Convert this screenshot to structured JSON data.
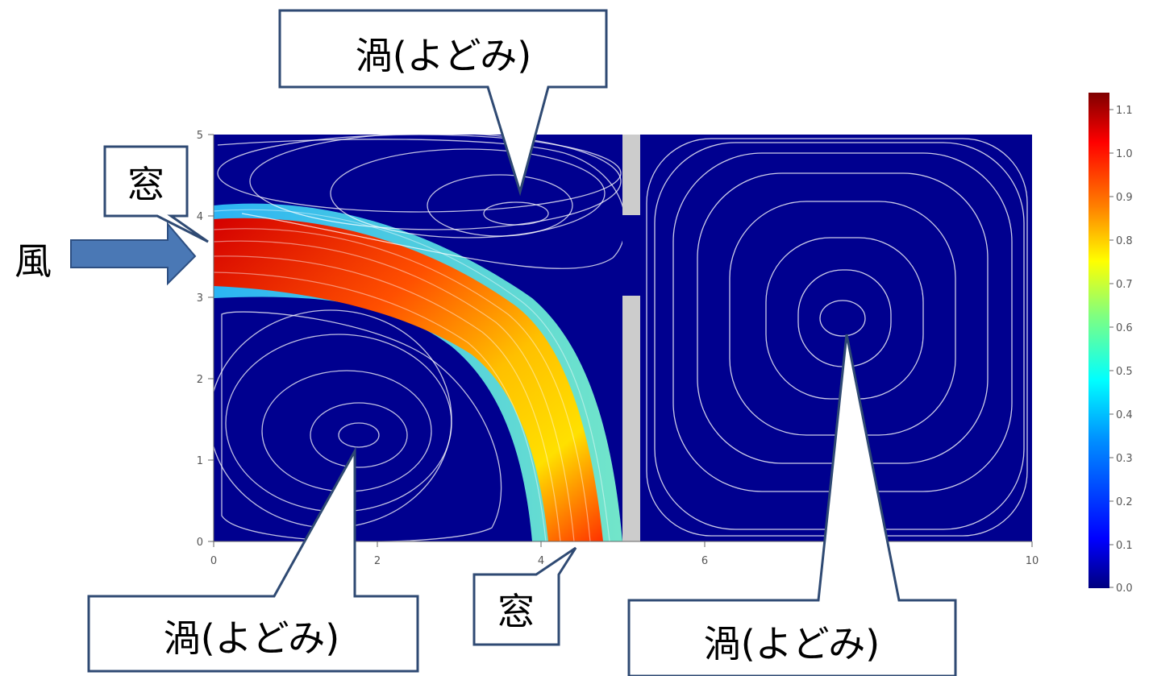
{
  "plot": {
    "x_ticks": [
      "0",
      "2",
      "4",
      "6",
      "10"
    ],
    "y_ticks": [
      "0",
      "1",
      "2",
      "3",
      "4",
      "5"
    ]
  },
  "colorbar": {
    "ticks": [
      "0.0",
      "0.1",
      "0.2",
      "0.3",
      "0.4",
      "0.5",
      "0.6",
      "0.7",
      "0.8",
      "0.9",
      "1.0",
      "1.1"
    ],
    "colors": [
      "#00007f",
      "#0000ff",
      "#0080ff",
      "#00ffff",
      "#80ff80",
      "#ffff00",
      "#ff8000",
      "#ff0000",
      "#7f0000"
    ]
  },
  "wind": {
    "label": "風",
    "color": "#4a78b5"
  },
  "callouts": {
    "vortex_top": "渦(よどみ)",
    "vortex_bottom_left": "渦(よどみ)",
    "vortex_right": "渦(よどみ)",
    "window_left": "窓",
    "window_bottom": "窓"
  }
}
